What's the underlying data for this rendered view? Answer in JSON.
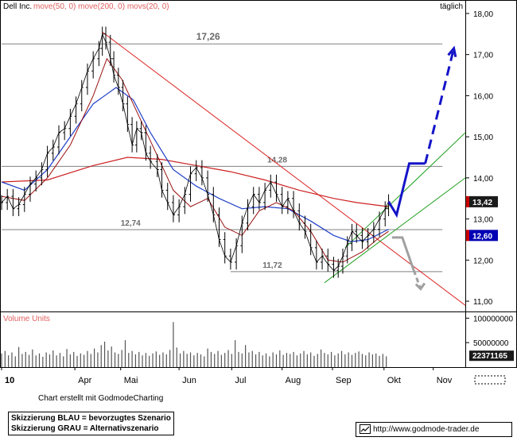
{
  "colors": {
    "price": "#000000",
    "ma50": "#1f3fc8",
    "ma200": "#cc2222",
    "ma20": "#9a1010",
    "trendline": "#dd2222",
    "channel": "#22a022",
    "scenario_blue": "#1414c8",
    "scenario_grey": "#a0a0a0",
    "hline": "#808080",
    "level_label": "#6a6a6a",
    "last_price_bg": "#1a1a1a",
    "ma_price_bg": "#0000b4",
    "red_marker": "#cc0000"
  },
  "chart_data": {
    "type": "line",
    "title": "Dell Inc.",
    "indicators_label": "move(50, 0) move(200, 0) movs(20, 0)",
    "period_label": "täglich",
    "ylim": [
      10.75,
      18.25
    ],
    "y_ticks": [
      "18,00",
      "17,00",
      "16,00",
      "15,00",
      "14,00",
      "13,00",
      "12,00",
      "11,00"
    ],
    "y_tick_values": [
      18,
      17,
      16,
      15,
      14,
      13,
      12,
      11
    ],
    "x_ticks": [
      "10",
      "Apr",
      "Mai",
      "Jun",
      "Jul",
      "Aug",
      "Sep",
      "Okt",
      "Nov"
    ],
    "x_tick_days": [
      0,
      64,
      104,
      155,
      201,
      245,
      289,
      334,
      377
    ],
    "x_range_days": [
      0,
      405
    ],
    "price_series": [
      [
        0,
        13.4
      ],
      [
        5,
        13.55
      ],
      [
        10,
        13.25
      ],
      [
        15,
        13.35
      ],
      [
        20,
        13.6
      ],
      [
        25,
        13.85
      ],
      [
        30,
        14.0
      ],
      [
        35,
        14.2
      ],
      [
        40,
        14.6
      ],
      [
        45,
        14.75
      ],
      [
        50,
        15.1
      ],
      [
        55,
        15.2
      ],
      [
        60,
        15.5
      ],
      [
        65,
        15.8
      ],
      [
        70,
        16.2
      ],
      [
        75,
        16.6
      ],
      [
        80,
        16.9
      ],
      [
        85,
        17.15
      ],
      [
        88,
        17.5
      ],
      [
        91,
        17.3
      ],
      [
        95,
        16.9
      ],
      [
        98,
        16.5
      ],
      [
        102,
        16.2
      ],
      [
        106,
        15.8
      ],
      [
        110,
        15.3
      ],
      [
        114,
        14.8
      ],
      [
        118,
        15.2
      ],
      [
        122,
        15.1
      ],
      [
        126,
        14.6
      ],
      [
        130,
        14.4
      ],
      [
        136,
        14.2
      ],
      [
        140,
        13.7
      ],
      [
        145,
        13.4
      ],
      [
        150,
        13.1
      ],
      [
        155,
        13.3
      ],
      [
        160,
        13.6
      ],
      [
        165,
        14.1
      ],
      [
        170,
        14.25
      ],
      [
        175,
        14.0
      ],
      [
        180,
        13.6
      ],
      [
        185,
        13.1
      ],
      [
        190,
        12.5
      ],
      [
        195,
        12.1
      ],
      [
        200,
        11.95
      ],
      [
        205,
        12.35
      ],
      [
        210,
        12.9
      ],
      [
        215,
        13.3
      ],
      [
        220,
        13.6
      ],
      [
        225,
        13.4
      ],
      [
        230,
        13.7
      ],
      [
        235,
        13.9
      ],
      [
        240,
        13.6
      ],
      [
        245,
        13.3
      ],
      [
        250,
        13.5
      ],
      [
        255,
        13.2
      ],
      [
        260,
        12.9
      ],
      [
        265,
        12.7
      ],
      [
        270,
        12.3
      ],
      [
        275,
        11.95
      ],
      [
        280,
        12.1
      ],
      [
        285,
        11.9
      ],
      [
        290,
        11.75
      ],
      [
        294,
        11.85
      ],
      [
        298,
        12.1
      ],
      [
        302,
        12.4
      ],
      [
        306,
        12.7
      ],
      [
        310,
        12.6
      ],
      [
        315,
        12.45
      ],
      [
        320,
        12.6
      ],
      [
        325,
        12.75
      ],
      [
        330,
        13.0
      ],
      [
        335,
        13.25
      ],
      [
        338,
        13.42
      ]
    ],
    "ma50_series": [
      [
        0,
        13.9
      ],
      [
        20,
        13.7
      ],
      [
        40,
        14.2
      ],
      [
        60,
        15.0
      ],
      [
        80,
        15.8
      ],
      [
        100,
        16.2
      ],
      [
        115,
        15.9
      ],
      [
        130,
        15.1
      ],
      [
        150,
        14.2
      ],
      [
        170,
        13.8
      ],
      [
        190,
        13.5
      ],
      [
        210,
        13.25
      ],
      [
        230,
        13.3
      ],
      [
        250,
        13.25
      ],
      [
        270,
        12.95
      ],
      [
        290,
        12.6
      ],
      [
        305,
        12.45
      ],
      [
        320,
        12.5
      ],
      [
        338,
        12.75
      ]
    ],
    "ma200_series": [
      [
        0,
        13.9
      ],
      [
        40,
        13.95
      ],
      [
        80,
        14.3
      ],
      [
        110,
        14.5
      ],
      [
        140,
        14.45
      ],
      [
        170,
        14.3
      ],
      [
        200,
        14.15
      ],
      [
        230,
        13.95
      ],
      [
        260,
        13.7
      ],
      [
        290,
        13.5
      ],
      [
        310,
        13.4
      ],
      [
        338,
        13.3
      ]
    ],
    "ma20_series": [
      [
        0,
        13.55
      ],
      [
        20,
        13.45
      ],
      [
        40,
        14.0
      ],
      [
        60,
        14.8
      ],
      [
        80,
        16.0
      ],
      [
        92,
        16.9
      ],
      [
        105,
        16.4
      ],
      [
        120,
        15.5
      ],
      [
        135,
        14.6
      ],
      [
        150,
        13.7
      ],
      [
        165,
        13.3
      ],
      [
        180,
        13.5
      ],
      [
        195,
        12.8
      ],
      [
        210,
        12.6
      ],
      [
        225,
        13.2
      ],
      [
        240,
        13.4
      ],
      [
        255,
        13.2
      ],
      [
        270,
        12.7
      ],
      [
        285,
        12.0
      ],
      [
        298,
        11.95
      ],
      [
        315,
        12.2
      ],
      [
        330,
        12.55
      ],
      [
        338,
        12.7
      ]
    ],
    "trendline": [
      [
        88,
        17.55
      ],
      [
        405,
        10.9
      ]
    ],
    "channel_upper": [
      [
        300,
        12.3
      ],
      [
        405,
        15.1
      ]
    ],
    "channel_lower": [
      [
        282,
        11.45
      ],
      [
        405,
        14.0
      ]
    ],
    "hlines": [
      {
        "value": 17.26,
        "label": "17,26",
        "from_day": 0,
        "to_day": 385,
        "label_day": 170
      },
      {
        "value": 14.28,
        "label": "14,28",
        "from_day": 0,
        "to_day": 385,
        "label_day": 232
      },
      {
        "value": 12.74,
        "label": "12,74",
        "from_day": 0,
        "to_day": 385,
        "label_day": 104
      },
      {
        "value": 11.72,
        "label": "11,72",
        "from_day": 200,
        "to_day": 385,
        "label_day": 228
      }
    ],
    "scenario_blue": [
      [
        338,
        13.42
      ],
      [
        345,
        13.1
      ],
      [
        356,
        14.35
      ],
      [
        370,
        14.35
      ],
      [
        395,
        17.15
      ]
    ],
    "scenario_grey": [
      [
        341,
        12.55
      ],
      [
        350,
        12.55
      ],
      [
        360,
        11.75
      ],
      [
        366,
        11.3
      ]
    ],
    "last_price": 13.42,
    "last_price_label": "13,42",
    "ma_price": 12.6,
    "ma_price_label": "12,60",
    "volume": {
      "label": "Volume Units",
      "ticks": [
        "100000000",
        "50000000"
      ],
      "tick_values": [
        100000000,
        50000000
      ],
      "max": 112000000,
      "last_value_label": "22371165",
      "bars": [
        [
          0,
          28
        ],
        [
          3,
          33
        ],
        [
          6,
          24
        ],
        [
          9,
          30
        ],
        [
          12,
          22
        ],
        [
          15,
          41
        ],
        [
          18,
          27
        ],
        [
          21,
          31
        ],
        [
          24,
          25
        ],
        [
          27,
          36
        ],
        [
          30,
          24
        ],
        [
          33,
          28
        ],
        [
          36,
          21
        ],
        [
          39,
          30
        ],
        [
          42,
          26
        ],
        [
          45,
          34
        ],
        [
          48,
          24
        ],
        [
          51,
          29
        ],
        [
          54,
          22
        ],
        [
          57,
          37
        ],
        [
          60,
          26
        ],
        [
          63,
          31
        ],
        [
          66,
          23
        ],
        [
          69,
          28
        ],
        [
          72,
          25
        ],
        [
          75,
          33
        ],
        [
          78,
          27
        ],
        [
          81,
          38
        ],
        [
          84,
          30
        ],
        [
          87,
          45
        ],
        [
          90,
          52
        ],
        [
          93,
          34
        ],
        [
          96,
          42
        ],
        [
          99,
          30
        ],
        [
          102,
          27
        ],
        [
          105,
          35
        ],
        [
          108,
          55
        ],
        [
          111,
          29
        ],
        [
          114,
          33
        ],
        [
          117,
          26
        ],
        [
          120,
          31
        ],
        [
          123,
          24
        ],
        [
          126,
          29
        ],
        [
          129,
          23
        ],
        [
          132,
          28
        ],
        [
          135,
          32
        ],
        [
          138,
          25
        ],
        [
          141,
          30
        ],
        [
          144,
          26
        ],
        [
          147,
          35
        ],
        [
          150,
          92
        ],
        [
          153,
          40
        ],
        [
          156,
          28
        ],
        [
          159,
          33
        ],
        [
          162,
          27
        ],
        [
          165,
          30
        ],
        [
          168,
          24
        ],
        [
          171,
          29
        ],
        [
          174,
          26
        ],
        [
          177,
          22
        ],
        [
          180,
          38
        ],
        [
          183,
          31
        ],
        [
          186,
          27
        ],
        [
          189,
          33
        ],
        [
          192,
          25
        ],
        [
          195,
          29
        ],
        [
          198,
          35
        ],
        [
          201,
          27
        ],
        [
          204,
          55
        ],
        [
          207,
          31
        ],
        [
          210,
          28
        ],
        [
          213,
          45
        ],
        [
          216,
          30
        ],
        [
          219,
          33
        ],
        [
          222,
          26
        ],
        [
          225,
          31
        ],
        [
          228,
          24
        ],
        [
          231,
          28
        ],
        [
          234,
          22
        ],
        [
          237,
          30
        ],
        [
          240,
          26
        ],
        [
          243,
          34
        ],
        [
          246,
          25
        ],
        [
          249,
          29
        ],
        [
          252,
          27
        ],
        [
          255,
          31
        ],
        [
          258,
          24
        ],
        [
          261,
          28
        ],
        [
          264,
          33
        ],
        [
          267,
          26
        ],
        [
          270,
          30
        ],
        [
          273,
          23
        ],
        [
          276,
          27
        ],
        [
          279,
          36
        ],
        [
          282,
          29
        ],
        [
          285,
          26
        ],
        [
          288,
          31
        ],
        [
          291,
          24
        ],
        [
          294,
          28
        ],
        [
          297,
          33
        ],
        [
          300,
          26
        ],
        [
          303,
          30
        ],
        [
          306,
          25
        ],
        [
          309,
          29
        ],
        [
          312,
          32
        ],
        [
          315,
          27
        ],
        [
          318,
          24
        ],
        [
          321,
          30
        ],
        [
          324,
          26
        ],
        [
          327,
          28
        ],
        [
          330,
          23
        ],
        [
          333,
          27
        ],
        [
          336,
          22
        ]
      ]
    }
  },
  "footer": {
    "credit": "Chart erstellt mit GodmodeCharting",
    "legend_blue": "Skizzierung BLAU = bevorzugtes Szenario",
    "legend_grey": "Skizzierung GRAU = Alternativszenario",
    "website": "http://www.godmode-trader.de"
  }
}
